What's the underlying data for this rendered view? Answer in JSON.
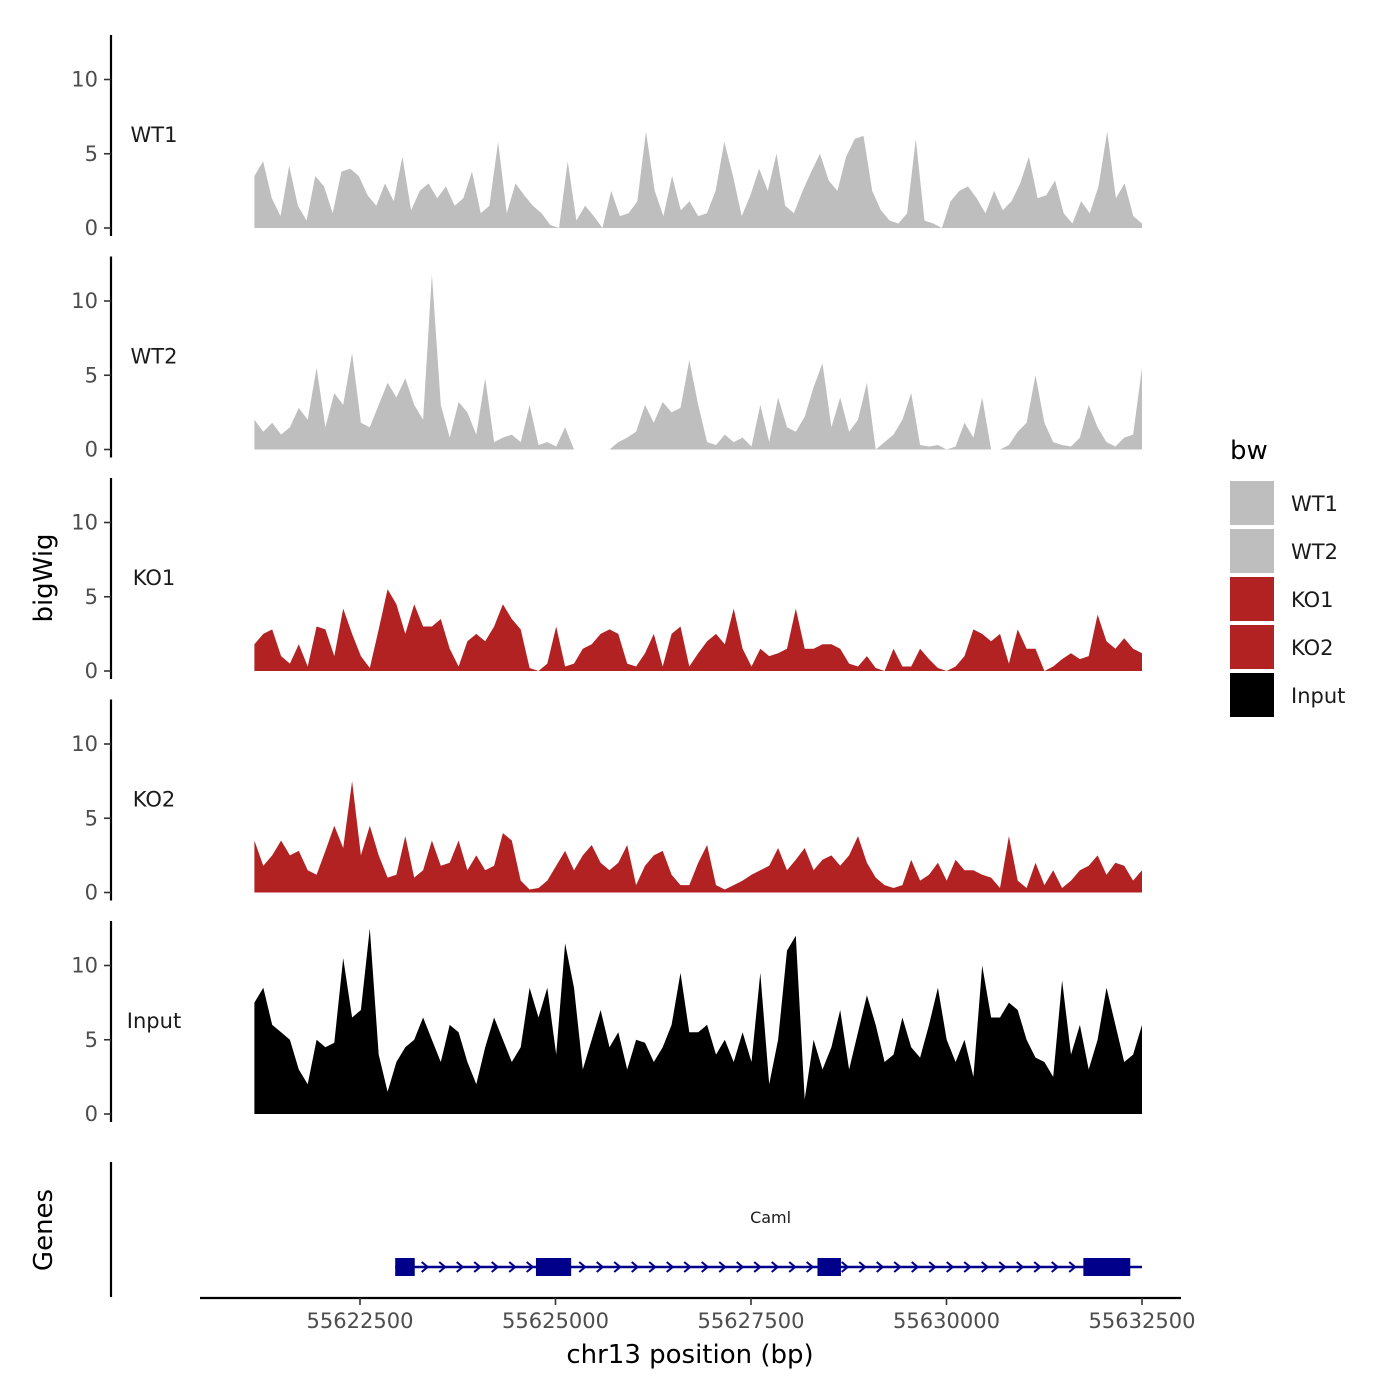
{
  "chart_data": {
    "type": "area",
    "chromosome": "chr13",
    "ylabel": "bigWig",
    "xlabel": "chr13 position (bp)",
    "xlim": [
      55620000,
      55633000
    ],
    "ylim": [
      0,
      13
    ],
    "yticks": [
      0,
      5,
      10
    ],
    "xticks": [
      55622500,
      55625000,
      55627500,
      55630000,
      55632500
    ],
    "data_start": 55621150,
    "data_end": 55632500,
    "legend_title": "bw",
    "legend": [
      {
        "label": "WT1",
        "color": "#bebebe"
      },
      {
        "label": "WT2",
        "color": "#bebebe"
      },
      {
        "label": "KO1",
        "color": "#b22222"
      },
      {
        "label": "KO2",
        "color": "#b22222"
      },
      {
        "label": "Input",
        "color": "#000000"
      }
    ],
    "series": [
      {
        "name": "WT1",
        "color": "#bebebe",
        "values": [
          3.5,
          4.5,
          2,
          0.8,
          4.2,
          1.5,
          0.5,
          3.5,
          2.8,
          1,
          3.8,
          4,
          3.5,
          2.2,
          1.5,
          3,
          1.8,
          4.8,
          1.2,
          2.5,
          3,
          2,
          2.8,
          1.5,
          2,
          3.8,
          1,
          1.5,
          5.8,
          1,
          3,
          2.2,
          1.5,
          1,
          0.2,
          0,
          4.5,
          0.5,
          1.5,
          0.8,
          0,
          2.5,
          0.8,
          1,
          1.8,
          6.5,
          2.5,
          0.8,
          3.5,
          1.2,
          1.8,
          0.8,
          1,
          2.5,
          5.8,
          3.5,
          0.8,
          2.2,
          4,
          2.5,
          5,
          1.5,
          1,
          2.5,
          3.8,
          5,
          3.2,
          2.5,
          4.8,
          6,
          6.2,
          2.5,
          1.2,
          0.5,
          0.3,
          1,
          6,
          0.5,
          0.3,
          0,
          1.8,
          2.5,
          2.8,
          2,
          1,
          2.5,
          1.2,
          1.8,
          3,
          4.8,
          2,
          2.2,
          3.2,
          1,
          0.3,
          1.8,
          1,
          2.8,
          6.5,
          2,
          3,
          0.8,
          0.3
        ]
      },
      {
        "name": "WT2",
        "color": "#bebebe",
        "values": [
          2,
          1.2,
          1.8,
          1,
          1.5,
          2.8,
          2,
          5.5,
          1.5,
          3.8,
          3,
          6.5,
          1.8,
          1.5,
          3,
          4.5,
          3.5,
          4.8,
          3,
          2,
          11.8,
          3,
          0.8,
          3.2,
          2.5,
          1,
          4.8,
          0.5,
          0.8,
          1,
          0.5,
          3,
          0.3,
          0.5,
          0.2,
          1.5,
          0,
          0,
          0,
          0,
          0,
          0.5,
          0.8,
          1.2,
          3,
          1.8,
          3.2,
          2.5,
          2.8,
          6,
          3,
          0.5,
          0.3,
          1,
          0.5,
          0.8,
          0.2,
          3,
          0.5,
          3.5,
          1.5,
          1.2,
          2.2,
          4.2,
          5.8,
          1.5,
          3.5,
          1.2,
          2,
          4.5,
          0,
          0.5,
          1,
          2,
          3.8,
          0.3,
          0.2,
          0.3,
          0,
          0.2,
          1.8,
          0.8,
          3.5,
          0,
          0,
          0.3,
          1.2,
          1.8,
          5,
          1.8,
          0.5,
          0.3,
          0.2,
          0.8,
          3,
          1.5,
          0.5,
          0.2,
          0.8,
          1,
          5.5
        ]
      },
      {
        "name": "KO1",
        "color": "#b22222",
        "values": [
          1.8,
          2.5,
          2.8,
          1,
          0.5,
          1.8,
          0.3,
          3,
          2.8,
          1,
          4.2,
          2.5,
          1,
          0.2,
          2.8,
          5.5,
          4.5,
          2.5,
          4.5,
          3,
          3,
          3.5,
          1.5,
          0.3,
          2,
          2.5,
          2,
          3,
          4.5,
          3.5,
          2.8,
          0.2,
          0,
          0.5,
          3,
          0.3,
          0.5,
          1.5,
          1.8,
          2.5,
          2.8,
          2.5,
          0.5,
          0.3,
          1.2,
          2.5,
          0.3,
          2.5,
          3,
          0.3,
          1.2,
          2,
          2.5,
          1.8,
          4.2,
          1.5,
          0.3,
          1.5,
          1,
          1.2,
          1.5,
          4.2,
          1.5,
          1.5,
          1.8,
          1.8,
          1.5,
          0.5,
          0.3,
          1,
          0.2,
          0,
          1.5,
          0.3,
          0.3,
          1.5,
          0.8,
          0.2,
          0,
          0.3,
          1,
          2.8,
          2.5,
          2,
          2.5,
          0.5,
          2.8,
          1.5,
          1.5,
          0,
          0.3,
          0.8,
          1.2,
          0.8,
          1,
          3.8,
          2,
          1.5,
          2.2,
          1.5,
          1.2
        ]
      },
      {
        "name": "KO2",
        "color": "#b22222",
        "values": [
          3.5,
          1.8,
          2.5,
          3.5,
          2.5,
          2.8,
          1.5,
          1.2,
          2.8,
          4.5,
          3,
          7.5,
          2.5,
          4.5,
          2.5,
          1,
          1.2,
          3.8,
          1,
          1.5,
          3.5,
          1.8,
          2,
          3.5,
          1.5,
          2.5,
          1.5,
          1.8,
          4,
          3.5,
          0.8,
          0.2,
          0.3,
          0.8,
          1.8,
          2.8,
          1.5,
          2.5,
          3.2,
          2,
          1.5,
          2,
          3.2,
          0.5,
          1.8,
          2.5,
          2.8,
          1.2,
          0.5,
          0.5,
          2,
          3.2,
          0.5,
          0.2,
          0.5,
          0.8,
          1.2,
          1.5,
          1.8,
          3,
          1.5,
          2.2,
          3,
          1.5,
          2.2,
          2.5,
          1.8,
          2.5,
          3.8,
          2,
          1,
          0.5,
          0.3,
          0.5,
          2.2,
          0.8,
          1.2,
          2,
          0.8,
          2.2,
          1.5,
          1.5,
          1.2,
          1,
          0.3,
          3.8,
          0.8,
          0.3,
          2,
          0.5,
          1.5,
          0.3,
          0.8,
          1.5,
          1.8,
          2.5,
          1.2,
          2,
          1.8,
          0.8,
          1.5
        ]
      },
      {
        "name": "Input",
        "color": "#000000",
        "values": [
          7.5,
          8.5,
          6,
          5.5,
          5,
          3,
          2,
          5,
          4.5,
          4.8,
          10.5,
          6.5,
          7,
          12.5,
          4,
          1.5,
          3.5,
          4.5,
          5,
          6.5,
          5,
          3.5,
          6,
          5.5,
          3.5,
          2,
          4.5,
          6.5,
          5,
          3.5,
          4.5,
          8.5,
          6.5,
          8.5,
          4,
          11.5,
          8.5,
          3,
          5,
          7,
          4.5,
          5.5,
          3,
          5,
          4.8,
          3.5,
          4.5,
          6,
          9.5,
          5.5,
          5.5,
          6,
          4,
          5,
          3.5,
          5.5,
          3.5,
          9.5,
          2,
          5,
          11,
          12,
          1,
          5,
          3,
          4.5,
          7,
          3,
          5.5,
          8,
          6,
          3.5,
          4,
          6.5,
          4.5,
          3.8,
          6,
          8.5,
          5,
          3.5,
          5,
          2.5,
          10,
          6.5,
          6.5,
          7.5,
          7,
          5,
          3.8,
          3.5,
          2.5,
          9,
          4,
          6,
          3,
          5,
          8.5,
          6,
          3.5,
          4,
          6
        ]
      }
    ],
    "gene_track": {
      "title": "Genes",
      "gene_name": "Caml",
      "strand": "+",
      "start": 55622950,
      "end": 55632500,
      "exons": [
        [
          55622950,
          55623200
        ],
        [
          55624750,
          55625200
        ],
        [
          55628350,
          55628650
        ],
        [
          55631750,
          55632350
        ]
      ]
    }
  }
}
